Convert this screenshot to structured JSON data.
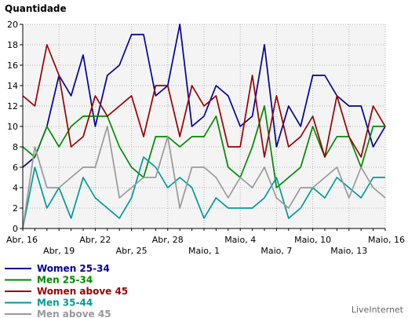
{
  "chart_data": {
    "type": "line",
    "ylabel": "Quantidade",
    "ylim": [
      0,
      20
    ],
    "yticks": [
      0,
      2,
      4,
      6,
      8,
      10,
      12,
      14,
      16,
      18,
      20
    ],
    "grid": true,
    "x_tick_labels": [
      {
        "index": 0,
        "label": "Abr, 16",
        "row": 0
      },
      {
        "index": 3,
        "label": "Abr, 19",
        "row": 1
      },
      {
        "index": 6,
        "label": "Abr, 22",
        "row": 0
      },
      {
        "index": 9,
        "label": "Abr, 25",
        "row": 1
      },
      {
        "index": 12,
        "label": "Abr, 28",
        "row": 0
      },
      {
        "index": 15,
        "label": "Maio, 1",
        "row": 1
      },
      {
        "index": 18,
        "label": "Maio, 4",
        "row": 0
      },
      {
        "index": 21,
        "label": "Maio, 7",
        "row": 1
      },
      {
        "index": 24,
        "label": "Maio, 10",
        "row": 0
      },
      {
        "index": 27,
        "label": "Maio, 13",
        "row": 1
      },
      {
        "index": 30,
        "label": "Maio, 16",
        "row": 0
      }
    ],
    "legend_position": "bottom-left",
    "series": [
      {
        "name": "Women 25-34",
        "color": "#000099",
        "values": [
          6,
          7,
          10,
          15,
          13,
          17,
          10,
          15,
          16,
          19,
          19,
          13,
          14,
          20,
          10,
          11,
          14,
          13,
          10,
          11,
          18,
          8,
          12,
          10,
          15,
          15,
          13,
          12,
          12,
          8,
          10
        ]
      },
      {
        "name": "Men 25-34",
        "color": "#008800",
        "values": [
          8,
          7,
          10,
          8,
          10,
          11,
          11,
          11,
          8,
          6,
          5,
          9,
          9,
          8,
          9,
          9,
          11,
          6,
          5,
          8,
          12,
          4,
          5,
          6,
          10,
          7,
          9,
          9,
          6,
          10,
          10
        ]
      },
      {
        "name": "Women above 45",
        "color": "#990000",
        "values": [
          13,
          12,
          18,
          15,
          8,
          9,
          13,
          11,
          12,
          13,
          9,
          14,
          14,
          9,
          14,
          12,
          13,
          8,
          8,
          15,
          7,
          13,
          8,
          9,
          11,
          7,
          13,
          9,
          7,
          12,
          10
        ]
      },
      {
        "name": "Men 35-44",
        "color": "#009999",
        "values": [
          0,
          6,
          2,
          4,
          1,
          5,
          3,
          2,
          1,
          3,
          7,
          6,
          4,
          5,
          4,
          1,
          3,
          2,
          2,
          2,
          3,
          5,
          1,
          2,
          4,
          3,
          5,
          4,
          3,
          5,
          5
        ]
      },
      {
        "name": "Men above 45",
        "color": "#999999",
        "values": [
          0,
          8,
          4,
          4,
          5,
          6,
          6,
          10,
          3,
          4,
          5,
          5,
          9,
          2,
          6,
          6,
          5,
          3,
          5,
          4,
          6,
          3,
          2,
          4,
          4,
          5,
          6,
          3,
          6,
          4,
          3
        ]
      }
    ]
  },
  "credit": "LiveInternet"
}
